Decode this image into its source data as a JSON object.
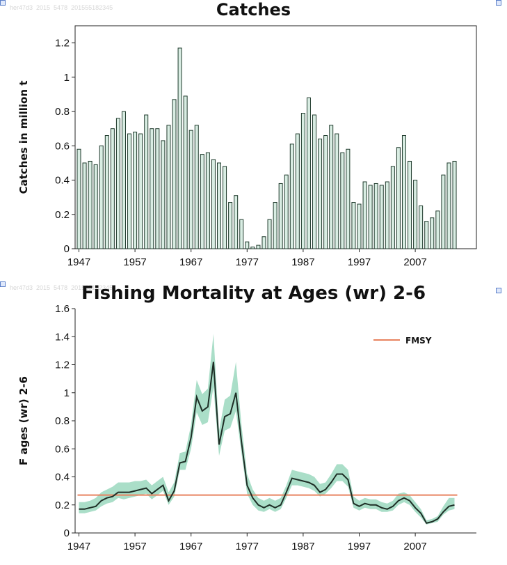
{
  "watermark_top": "her47d3  2015  5478  201555182345",
  "watermark_mid": "her47d3  2015  5478  201555182345",
  "colors": {
    "bar_fill": "#d9ede3",
    "bar_stroke": "#1f3a2c",
    "line": "#1e2e26",
    "band": "#8ed3b6",
    "fmsy": "#e8825f",
    "axis": "#222222"
  },
  "chart_data": [
    {
      "type": "bar",
      "title": "Catches",
      "xlabel": "",
      "ylabel": "Catches in million t",
      "ylim": [
        0,
        1.3
      ],
      "yticks": [
        "0",
        "0.2",
        "0.4",
        "0.6",
        "0.8",
        "1",
        "1.2"
      ],
      "xticks": [
        "1947",
        "1957",
        "1967",
        "1977",
        "1987",
        "1997",
        "2007"
      ],
      "x": [
        1947,
        1948,
        1949,
        1950,
        1951,
        1952,
        1953,
        1954,
        1955,
        1956,
        1957,
        1958,
        1959,
        1960,
        1961,
        1962,
        1963,
        1964,
        1965,
        1966,
        1967,
        1968,
        1969,
        1970,
        1971,
        1972,
        1973,
        1974,
        1975,
        1976,
        1977,
        1978,
        1979,
        1980,
        1981,
        1982,
        1983,
        1984,
        1985,
        1986,
        1987,
        1988,
        1989,
        1990,
        1991,
        1992,
        1993,
        1994,
        1995,
        1996,
        1997,
        1998,
        1999,
        2000,
        2001,
        2002,
        2003,
        2004,
        2005,
        2006,
        2007,
        2008,
        2009,
        2010,
        2011,
        2012,
        2013,
        2014
      ],
      "values": [
        0.58,
        0.5,
        0.51,
        0.49,
        0.6,
        0.66,
        0.7,
        0.76,
        0.8,
        0.67,
        0.68,
        0.67,
        0.78,
        0.7,
        0.7,
        0.63,
        0.72,
        0.87,
        1.17,
        0.89,
        0.69,
        0.72,
        0.55,
        0.56,
        0.52,
        0.5,
        0.48,
        0.27,
        0.31,
        0.17,
        0.04,
        0.01,
        0.02,
        0.07,
        0.17,
        0.27,
        0.38,
        0.43,
        0.61,
        0.67,
        0.79,
        0.88,
        0.78,
        0.64,
        0.66,
        0.72,
        0.67,
        0.56,
        0.58,
        0.27,
        0.26,
        0.39,
        0.37,
        0.38,
        0.37,
        0.39,
        0.48,
        0.59,
        0.66,
        0.51,
        0.4,
        0.25,
        0.16,
        0.18,
        0.22,
        0.43,
        0.5,
        0.51
      ],
      "grid": false,
      "legend": "none"
    },
    {
      "type": "line",
      "title": "Fishing Mortality at Ages (wr) 2-6",
      "xlabel": "",
      "ylabel": "F ages (wr) 2-6",
      "ylim": [
        0,
        1.6
      ],
      "yticks": [
        "0",
        "0.2",
        "0.4",
        "0.6",
        "0.8",
        "1",
        "1.2",
        "1.4",
        "1.6"
      ],
      "xticks": [
        "1947",
        "1957",
        "1967",
        "1977",
        "1987",
        "1997",
        "2007"
      ],
      "legend": "top-right",
      "series": [
        {
          "kind": "line_with_band",
          "x": [
            1947,
            1948,
            1949,
            1950,
            1951,
            1952,
            1953,
            1954,
            1955,
            1956,
            1957,
            1958,
            1959,
            1960,
            1961,
            1962,
            1963,
            1964,
            1965,
            1966,
            1967,
            1968,
            1969,
            1970,
            1971,
            1972,
            1973,
            1974,
            1975,
            1976,
            1977,
            1978,
            1979,
            1980,
            1981,
            1982,
            1983,
            1984,
            1985,
            1986,
            1987,
            1988,
            1989,
            1990,
            1991,
            1992,
            1993,
            1994,
            1995,
            1996,
            1997,
            1998,
            1999,
            2000,
            2001,
            2002,
            2003,
            2004,
            2005,
            2006,
            2007,
            2008,
            2009,
            2010,
            2011,
            2012,
            2013,
            2014
          ],
          "values": [
            0.17,
            0.17,
            0.18,
            0.19,
            0.23,
            0.25,
            0.26,
            0.29,
            0.29,
            0.29,
            0.3,
            0.31,
            0.32,
            0.28,
            0.31,
            0.34,
            0.23,
            0.3,
            0.5,
            0.51,
            0.68,
            0.97,
            0.87,
            0.9,
            1.22,
            0.63,
            0.83,
            0.85,
            1.0,
            0.65,
            0.34,
            0.25,
            0.2,
            0.18,
            0.2,
            0.18,
            0.2,
            0.29,
            0.39,
            0.38,
            0.37,
            0.36,
            0.34,
            0.29,
            0.31,
            0.36,
            0.42,
            0.42,
            0.38,
            0.21,
            0.19,
            0.21,
            0.2,
            0.2,
            0.18,
            0.17,
            0.19,
            0.23,
            0.25,
            0.23,
            0.18,
            0.14,
            0.07,
            0.08,
            0.1,
            0.15,
            0.19,
            0.2
          ],
          "lower": [
            0.14,
            0.14,
            0.15,
            0.16,
            0.19,
            0.21,
            0.22,
            0.25,
            0.24,
            0.25,
            0.26,
            0.27,
            0.28,
            0.24,
            0.27,
            0.3,
            0.2,
            0.26,
            0.45,
            0.45,
            0.6,
            0.86,
            0.77,
            0.79,
            1.04,
            0.55,
            0.73,
            0.75,
            0.87,
            0.57,
            0.28,
            0.2,
            0.16,
            0.15,
            0.17,
            0.15,
            0.17,
            0.25,
            0.34,
            0.34,
            0.33,
            0.32,
            0.3,
            0.26,
            0.28,
            0.32,
            0.37,
            0.37,
            0.33,
            0.18,
            0.16,
            0.18,
            0.17,
            0.17,
            0.15,
            0.15,
            0.16,
            0.2,
            0.22,
            0.2,
            0.15,
            0.11,
            0.06,
            0.07,
            0.08,
            0.13,
            0.16,
            0.17
          ],
          "upper": [
            0.22,
            0.22,
            0.23,
            0.25,
            0.29,
            0.31,
            0.33,
            0.36,
            0.36,
            0.36,
            0.37,
            0.37,
            0.38,
            0.34,
            0.37,
            0.4,
            0.29,
            0.36,
            0.57,
            0.58,
            0.77,
            1.09,
            0.99,
            1.03,
            1.42,
            0.73,
            0.95,
            0.98,
            1.22,
            0.77,
            0.42,
            0.31,
            0.25,
            0.23,
            0.25,
            0.23,
            0.25,
            0.34,
            0.45,
            0.44,
            0.43,
            0.42,
            0.4,
            0.35,
            0.36,
            0.42,
            0.49,
            0.49,
            0.45,
            0.26,
            0.23,
            0.25,
            0.24,
            0.24,
            0.22,
            0.21,
            0.23,
            0.28,
            0.29,
            0.27,
            0.22,
            0.17,
            0.09,
            0.1,
            0.12,
            0.19,
            0.25,
            0.25
          ]
        },
        {
          "name": "FMSY",
          "kind": "reference_line",
          "value": 0.27
        }
      ],
      "grid": false
    }
  ]
}
